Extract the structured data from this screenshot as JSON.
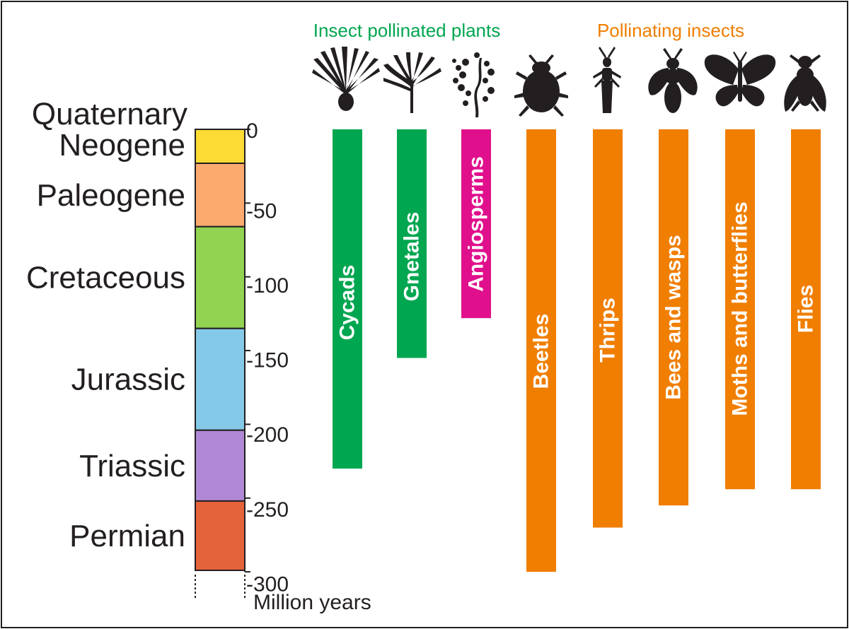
{
  "chart_data": {
    "type": "bar",
    "orientation": "vertical-range",
    "y_axis": {
      "label": "Million years",
      "ticks": [
        0,
        -50,
        -100,
        -150,
        -200,
        -250,
        -300
      ],
      "tick_labels": [
        "0",
        "-50",
        "-100",
        "-150",
        "-200",
        "-250",
        "-300"
      ],
      "ylim": [
        0,
        -300
      ]
    },
    "periods": [
      {
        "name": "Quaternary",
        "start": 0,
        "end": -2.6,
        "color": "#f9f07a"
      },
      {
        "name": "Neogene",
        "start": -2.6,
        "end": -23,
        "color": "#fbdb34"
      },
      {
        "name": "Paleogene",
        "start": -23,
        "end": -66,
        "color": "#fdaa6e"
      },
      {
        "name": "Cretaceous",
        "start": -66,
        "end": -135,
        "color": "#92d351"
      },
      {
        "name": "Jurassic",
        "start": -135,
        "end": -204,
        "color": "#85c9e8"
      },
      {
        "name": "Triassic",
        "start": -204,
        "end": -252,
        "color": "#b088d6"
      },
      {
        "name": "Permian",
        "start": -252,
        "end": -299,
        "color": "#e5633a"
      }
    ],
    "groups": [
      {
        "title": "Insect pollinated plants",
        "color": "#00a650"
      },
      {
        "title": "Pollinating insects",
        "color": "#f07e00"
      }
    ],
    "bars": [
      {
        "name": "Cycads",
        "group": 0,
        "start": 0,
        "end": -230,
        "color": "#00a650",
        "icon": "cycad-icon"
      },
      {
        "name": "Gnetales",
        "group": 0,
        "start": 0,
        "end": -155,
        "color": "#00a650",
        "icon": "gnetales-icon"
      },
      {
        "name": "Angiosperms",
        "group": 0,
        "start": 0,
        "end": -128,
        "color": "#e0108c",
        "icon": "angiosperm-icon"
      },
      {
        "name": "Beetles",
        "group": 1,
        "start": 0,
        "end": -300,
        "color": "#f07e00",
        "icon": "beetle-icon"
      },
      {
        "name": "Thrips",
        "group": 1,
        "start": 0,
        "end": -270,
        "color": "#f07e00",
        "icon": "thrips-icon"
      },
      {
        "name": "Bees and wasps",
        "group": 1,
        "start": 0,
        "end": -255,
        "color": "#f07e00",
        "icon": "bee-icon"
      },
      {
        "name": "Moths and butterflies",
        "group": 1,
        "start": 0,
        "end": -244,
        "color": "#f07e00",
        "icon": "butterfly-icon"
      },
      {
        "name": "Flies",
        "group": 1,
        "start": 0,
        "end": -244,
        "color": "#f07e00",
        "icon": "fly-icon"
      }
    ]
  }
}
